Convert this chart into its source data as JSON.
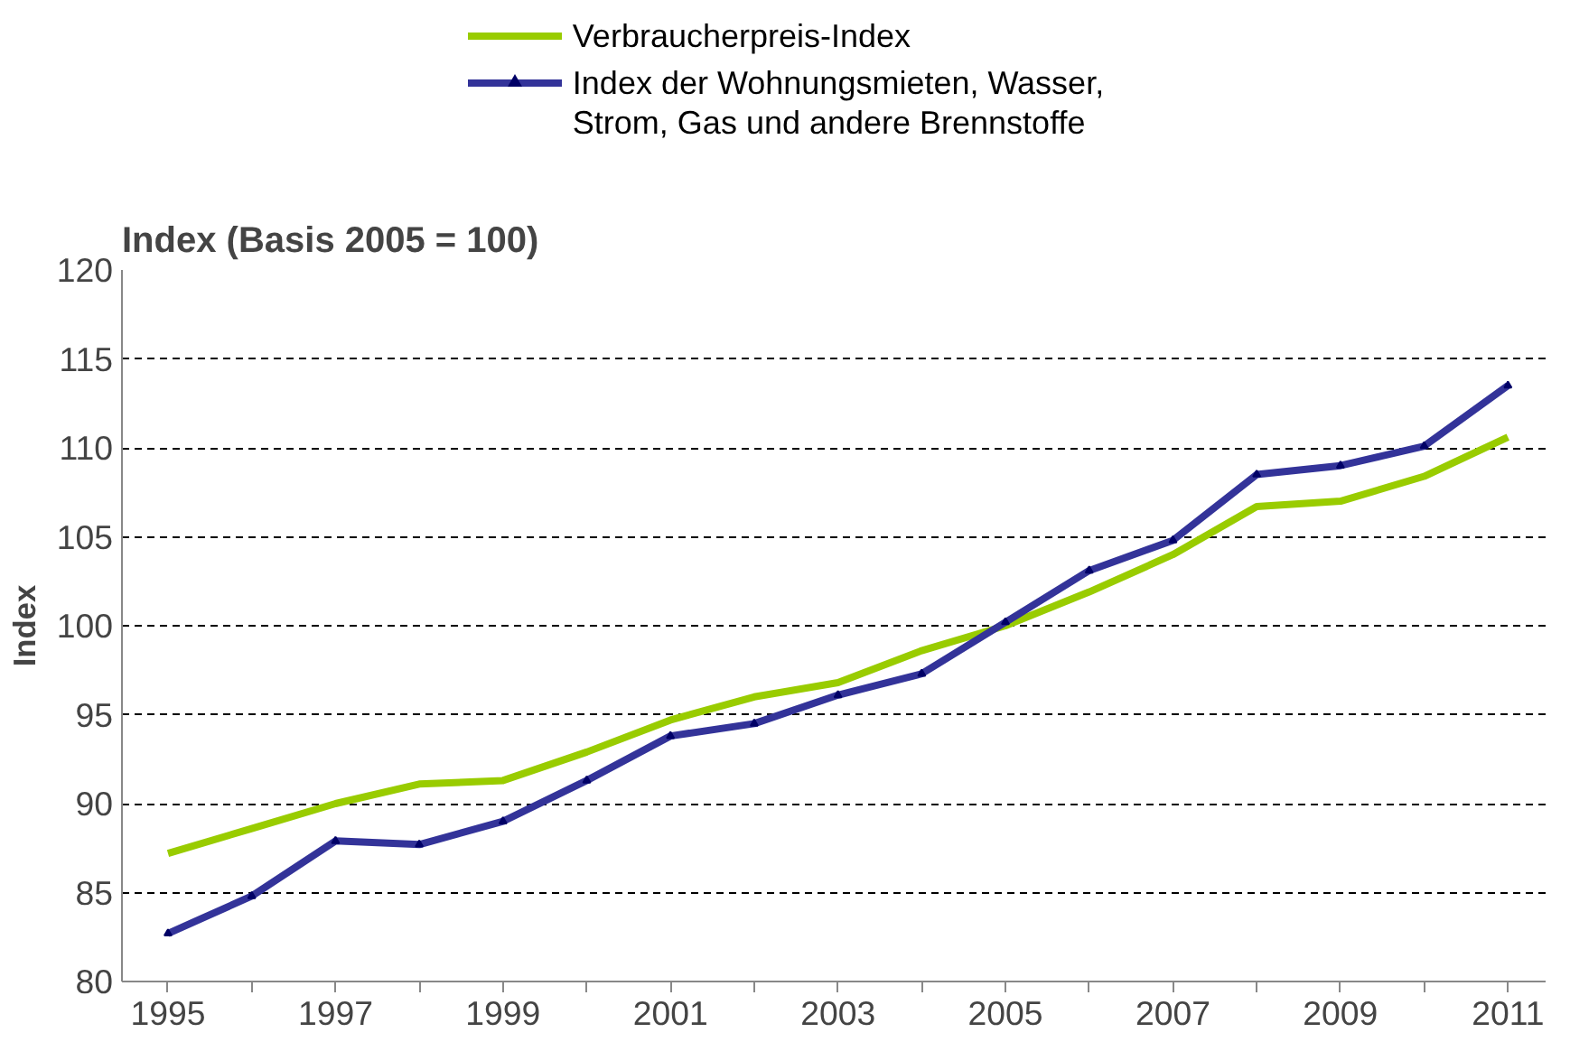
{
  "chart_data": {
    "type": "line",
    "title": "Index (Basis 2005 = 100)",
    "ylabel": "Index",
    "x": [
      1995,
      1996,
      1997,
      1998,
      1999,
      2000,
      2001,
      2002,
      2003,
      2004,
      2005,
      2006,
      2007,
      2008,
      2009,
      2010,
      2011
    ],
    "series": [
      {
        "name": "Verbraucherpreis-Index",
        "color": "#99cc00",
        "values": [
          87.2,
          88.6,
          90.0,
          91.1,
          91.3,
          92.9,
          94.7,
          96.0,
          96.8,
          98.6,
          100.0,
          101.9,
          104.0,
          106.7,
          107.0,
          108.4,
          110.6
        ]
      },
      {
        "name": "Index der Wohnungsmieten, Wasser,\nStrom, Gas und andere Brennstoffe",
        "color": "#333399",
        "marker": "triangle",
        "values": [
          82.7,
          84.8,
          87.9,
          87.7,
          89.0,
          91.3,
          93.8,
          94.5,
          96.1,
          97.3,
          100.2,
          103.1,
          104.8,
          108.5,
          109.0,
          110.1,
          113.5
        ]
      }
    ],
    "xlim": [
      1994.45,
      2011.45
    ],
    "xticks": [
      1995,
      {
        "value": 1996,
        "label": null
      },
      1997,
      {
        "value": 1998,
        "label": null
      },
      1999,
      {
        "value": 2000,
        "label": null
      },
      2001,
      {
        "value": 2002,
        "label": null
      },
      2003,
      {
        "value": 2004,
        "label": null
      },
      2005,
      {
        "value": 2006,
        "label": null
      },
      2007,
      {
        "value": 2008,
        "label": null
      },
      2009,
      {
        "value": 2010,
        "label": null
      },
      2011
    ],
    "ylim": [
      80,
      120
    ],
    "yticks": [
      80,
      85,
      90,
      95,
      100,
      105,
      110,
      115,
      120
    ],
    "grid": "y",
    "legend": "top",
    "line_style": "solid"
  }
}
